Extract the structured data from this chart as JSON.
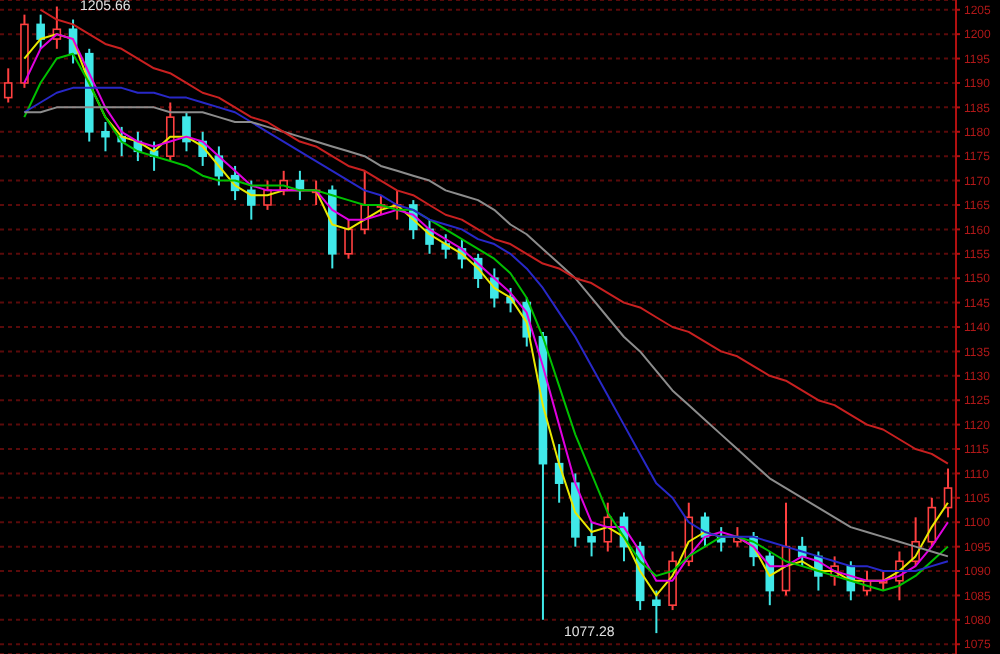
{
  "chart_data": {
    "type": "candlestick",
    "categories": [
      null,
      null,
      null,
      null,
      null,
      null,
      null,
      null,
      null,
      null,
      null,
      null,
      null,
      null,
      null,
      null,
      null,
      null,
      null,
      null,
      null,
      null,
      null,
      null,
      null,
      null,
      null,
      null,
      null,
      null,
      null,
      null,
      null,
      null,
      null,
      null,
      null,
      null,
      null,
      null,
      null,
      null,
      null,
      null,
      null,
      null,
      null,
      null,
      null,
      null,
      null,
      null,
      null,
      null,
      null,
      null,
      null,
      null,
      null
    ],
    "ohlc": [
      [
        1187,
        1193,
        1186,
        1190
      ],
      [
        1190,
        1204,
        1189,
        1202
      ],
      [
        1202,
        1204,
        1197,
        1199
      ],
      [
        1199,
        1205.66,
        1197,
        1201
      ],
      [
        1201,
        1203,
        1194,
        1196
      ],
      [
        1196,
        1197,
        1178,
        1180
      ],
      [
        1180,
        1182,
        1176,
        1179
      ],
      [
        1179,
        1181,
        1175,
        1178
      ],
      [
        1178,
        1180,
        1174,
        1176
      ],
      [
        1176,
        1178,
        1172,
        1175
      ],
      [
        1175,
        1186,
        1174,
        1183
      ],
      [
        1183,
        1184,
        1176,
        1178
      ],
      [
        1178,
        1180,
        1173,
        1175
      ],
      [
        1175,
        1177,
        1169,
        1171
      ],
      [
        1171,
        1173,
        1166,
        1168
      ],
      [
        1168,
        1170,
        1162,
        1165
      ],
      [
        1165,
        1170,
        1164,
        1168
      ],
      [
        1168,
        1172,
        1167,
        1170
      ],
      [
        1170,
        1172,
        1166,
        1168
      ],
      [
        1168,
        1170,
        1165,
        1168
      ],
      [
        1168,
        1169,
        1152,
        1155
      ],
      [
        1155,
        1162,
        1154,
        1160
      ],
      [
        1160,
        1172,
        1159,
        1165
      ],
      [
        1165,
        1167,
        1163,
        1165
      ],
      [
        1165,
        1168,
        1162,
        1165
      ],
      [
        1165,
        1166,
        1158,
        1160
      ],
      [
        1160,
        1162,
        1155,
        1157
      ],
      [
        1157,
        1159,
        1154,
        1156
      ],
      [
        1156,
        1158,
        1152,
        1154
      ],
      [
        1154,
        1155,
        1148,
        1150
      ],
      [
        1150,
        1152,
        1144,
        1146
      ],
      [
        1146,
        1148,
        1143,
        1145
      ],
      [
        1145,
        1146,
        1136,
        1138
      ],
      [
        1138,
        1139,
        1080,
        1112
      ],
      [
        1112,
        1116,
        1104,
        1108
      ],
      [
        1108,
        1110,
        1095,
        1097
      ],
      [
        1097,
        1100,
        1093,
        1096
      ],
      [
        1096,
        1104,
        1094,
        1101
      ],
      [
        1101,
        1102,
        1092,
        1095
      ],
      [
        1095,
        1096,
        1082,
        1084
      ],
      [
        1084,
        1086,
        1077.28,
        1083
      ],
      [
        1083,
        1094,
        1082,
        1092
      ],
      [
        1092,
        1104,
        1091,
        1101
      ],
      [
        1101,
        1102,
        1095,
        1097
      ],
      [
        1097,
        1099,
        1094,
        1096
      ],
      [
        1096,
        1099,
        1095,
        1097
      ],
      [
        1097,
        1098,
        1091,
        1093
      ],
      [
        1093,
        1094,
        1083,
        1086
      ],
      [
        1086,
        1104,
        1085,
        1095
      ],
      [
        1095,
        1097,
        1091,
        1093
      ],
      [
        1093,
        1094,
        1086,
        1089
      ],
      [
        1089,
        1093,
        1087,
        1091
      ],
      [
        1091,
        1092,
        1084,
        1086
      ],
      [
        1086,
        1090,
        1085,
        1088
      ],
      [
        1088,
        1090,
        1086,
        1088
      ],
      [
        1088,
        1094,
        1084,
        1092
      ],
      [
        1092,
        1101,
        1091,
        1096
      ],
      [
        1096,
        1105,
        1095,
        1103
      ],
      [
        1103,
        1111,
        1101,
        1107
      ]
    ],
    "colors": [
      "#ff4040",
      "#ff4040",
      "#40e8e8",
      "#ff4040",
      "#40e8e8",
      "#40e8e8",
      "#40e8e8",
      "#40e8e8",
      "#40e8e8",
      "#40e8e8",
      "#ff4040",
      "#40e8e8",
      "#40e8e8",
      "#40e8e8",
      "#40e8e8",
      "#40e8e8",
      "#ff4040",
      "#ff4040",
      "#40e8e8",
      "#ff4040",
      "#40e8e8",
      "#ff4040",
      "#ff4040",
      "#ff4040",
      "#ff4040",
      "#40e8e8",
      "#40e8e8",
      "#40e8e8",
      "#40e8e8",
      "#40e8e8",
      "#40e8e8",
      "#40e8e8",
      "#40e8e8",
      "#40e8e8",
      "#40e8e8",
      "#40e8e8",
      "#40e8e8",
      "#ff4040",
      "#40e8e8",
      "#40e8e8",
      "#40e8e8",
      "#ff4040",
      "#ff4040",
      "#40e8e8",
      "#40e8e8",
      "#ff4040",
      "#40e8e8",
      "#40e8e8",
      "#ff4040",
      "#40e8e8",
      "#40e8e8",
      "#ff4040",
      "#40e8e8",
      "#ff4040",
      "#ff4040",
      "#ff4040",
      "#ff4040",
      "#ff4040",
      "#ff4040"
    ],
    "series": [
      {
        "type": "line",
        "color": "#e8e800",
        "values": [
          null,
          1195,
          1199,
          1200,
          1199,
          1190,
          1183,
          1179,
          1178,
          1176,
          1179,
          1179,
          1177,
          1173,
          1169,
          1167,
          1167,
          1168,
          1168,
          1168,
          1161,
          1160,
          1162,
          1164,
          1165,
          1162,
          1159,
          1157,
          1155,
          1152,
          1148,
          1146,
          1141,
          1124,
          1112,
          1102,
          1098,
          1099,
          1097,
          1090,
          1085,
          1089,
          1096,
          1098,
          1097,
          1097,
          1095,
          1089,
          1091,
          1092,
          1090,
          1090,
          1088,
          1088,
          1088,
          1090,
          1093,
          1099,
          1104
        ]
      },
      {
        "type": "line",
        "color": "#e000e0",
        "values": [
          null,
          1190,
          1197,
          1200,
          1199,
          1192,
          1185,
          1180,
          1178,
          1177,
          1178,
          1179,
          1178,
          1175,
          1172,
          1169,
          1168,
          1168,
          1168,
          1168,
          1164,
          1162,
          1162,
          1163,
          1164,
          1163,
          1160,
          1158,
          1156,
          1153,
          1150,
          1147,
          1143,
          1132,
          1120,
          1108,
          1100,
          1099,
          1099,
          1094,
          1088,
          1088,
          1093,
          1097,
          1098,
          1097,
          1095,
          1091,
          1091,
          1093,
          1092,
          1090,
          1089,
          1088,
          1088,
          1089,
          1091,
          1095,
          1100
        ]
      },
      {
        "type": "line",
        "color": "#00c000",
        "values": [
          null,
          1183,
          1190,
          1195,
          1196,
          1190,
          1183,
          1178,
          1176,
          1175,
          1174,
          1173,
          1171,
          1170,
          1170,
          1169,
          1169,
          1169,
          1168,
          1168,
          1167,
          1166,
          1165,
          1165,
          1164,
          1164,
          1162,
          1160,
          1158,
          1156,
          1154,
          1151,
          1146,
          1138,
          1128,
          1118,
          1110,
          1102,
          1097,
          1092,
          1089,
          1090,
          1093,
          1095,
          1097,
          1097,
          1096,
          1094,
          1092,
          1091,
          1090,
          1089,
          1088,
          1087,
          1086,
          1087,
          1089,
          1092,
          1095
        ]
      },
      {
        "type": "line",
        "color": "#2828c8",
        "values": [
          null,
          1184,
          1186,
          1188,
          1189,
          1189,
          1189,
          1189,
          1188,
          1188,
          1187,
          1187,
          1186,
          1185,
          1184,
          1182,
          1180,
          1178,
          1176,
          1174,
          1172,
          1170,
          1168,
          1167,
          1165,
          1164,
          1162,
          1161,
          1160,
          1158,
          1157,
          1155,
          1152,
          1148,
          1143,
          1138,
          1132,
          1126,
          1120,
          1114,
          1108,
          1105,
          1100,
          1098,
          1097,
          1097,
          1097,
          1096,
          1095,
          1094,
          1093,
          1092,
          1091,
          1091,
          1090,
          1090,
          1090,
          1091,
          1092
        ]
      },
      {
        "type": "line",
        "color": "#8c8c8c",
        "values": [
          null,
          1184,
          1184,
          1185,
          1185,
          1185,
          1185,
          1185,
          1185,
          1185,
          1184,
          1184,
          1184,
          1183,
          1182,
          1182,
          1181,
          1180,
          1179,
          1178,
          1177,
          1176,
          1175,
          1173,
          1172,
          1171,
          1170,
          1168,
          1167,
          1166,
          1164,
          1161,
          1159,
          1156,
          1153,
          1150,
          1146,
          1142,
          1138,
          1135,
          1131,
          1127,
          1124,
          1121,
          1118,
          1115,
          1112,
          1109,
          1107,
          1105,
          1103,
          1101,
          1099,
          1098,
          1097,
          1096,
          1095,
          1094,
          1093
        ]
      },
      {
        "type": "line",
        "color": "#c82020",
        "values": [
          null,
          null,
          1205,
          1203,
          1202,
          1200,
          1198,
          1197,
          1195,
          1193,
          1192,
          1190,
          1188,
          1187,
          1185,
          1183,
          1182,
          1180,
          1178,
          1177,
          1175,
          1173,
          1172,
          1170,
          1168,
          1167,
          1165,
          1163,
          1162,
          1160,
          1158,
          1157,
          1155,
          1153,
          1152,
          1150,
          1149,
          1147,
          1145,
          1144,
          1142,
          1140,
          1139,
          1137,
          1135,
          1134,
          1132,
          1130,
          1129,
          1127,
          1125,
          1124,
          1122,
          1120,
          1119,
          1117,
          1115,
          1114,
          1112
        ]
      }
    ],
    "annotations": [
      "1205.66",
      "1077.28"
    ],
    "ylim": [
      1073,
      1207
    ],
    "yticks": [
      1075,
      1080,
      1085,
      1090,
      1095,
      1100,
      1105,
      1110,
      1115,
      1120,
      1125,
      1130,
      1135,
      1140,
      1145,
      1150,
      1155,
      1160,
      1165,
      1170,
      1175,
      1180,
      1185,
      1190,
      1195,
      1200,
      1205
    ],
    "grid": "y",
    "tick_labels": "y",
    "legend": false
  }
}
